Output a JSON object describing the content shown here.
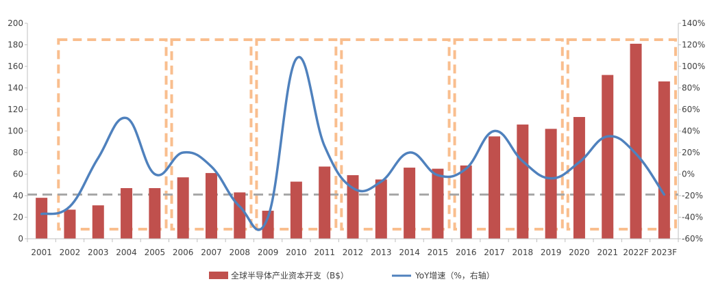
{
  "chart_data": {
    "type": "bar",
    "title": "",
    "categories": [
      "2001",
      "2002",
      "2003",
      "2004",
      "2005",
      "2006",
      "2007",
      "2008",
      "2009",
      "2010",
      "2011",
      "2012",
      "2013",
      "2014",
      "2015",
      "2016",
      "2017",
      "2018",
      "2019",
      "2020",
      "2021",
      "2022F",
      "2023F"
    ],
    "series": [
      {
        "name": "全球半导体产业资本开支（B$）",
        "type": "bar",
        "axis": "left",
        "color": "#C0504D",
        "values": [
          38,
          27,
          31,
          47,
          47,
          57,
          61,
          43,
          26,
          53,
          67,
          59,
          55,
          66,
          65,
          68,
          95,
          106,
          102,
          113,
          152,
          181,
          146
        ]
      },
      {
        "name": "YoY增速（%，右轴）",
        "type": "line",
        "axis": "right",
        "color": "#4F81BD",
        "values": [
          -37,
          -30,
          15,
          52,
          0,
          20,
          7,
          -30,
          -40,
          107,
          26,
          -13,
          -7,
          20,
          -1,
          5,
          40,
          12,
          -4,
          11,
          35,
          19,
          -19
        ]
      }
    ],
    "y_left": {
      "min": 0,
      "max": 200,
      "step": 20,
      "ticks": [
        "0",
        "20",
        "40",
        "60",
        "80",
        "100",
        "120",
        "140",
        "160",
        "180",
        "200"
      ]
    },
    "y_right": {
      "min": -60,
      "max": 140,
      "step": 20,
      "ticks": [
        "-60%",
        "-40%",
        "-20%",
        "0%",
        "20%",
        "40%",
        "60%",
        "80%",
        "100%",
        "120%",
        "140%"
      ]
    },
    "reference_line": {
      "axis": "left",
      "value": 41,
      "color": "#A6A6A6"
    },
    "cycle_boxes": {
      "color": "#F9BE8E",
      "groups": [
        {
          "from": "2002",
          "to": "2005"
        },
        {
          "from": "2006",
          "to": "2008"
        },
        {
          "from": "2009",
          "to": "2011"
        },
        {
          "from": "2012",
          "to": "2015"
        },
        {
          "from": "2016",
          "to": "2019"
        },
        {
          "from": "2020",
          "to": "2023F"
        }
      ]
    },
    "legend": {
      "position": "bottom-center"
    },
    "grid": false
  }
}
